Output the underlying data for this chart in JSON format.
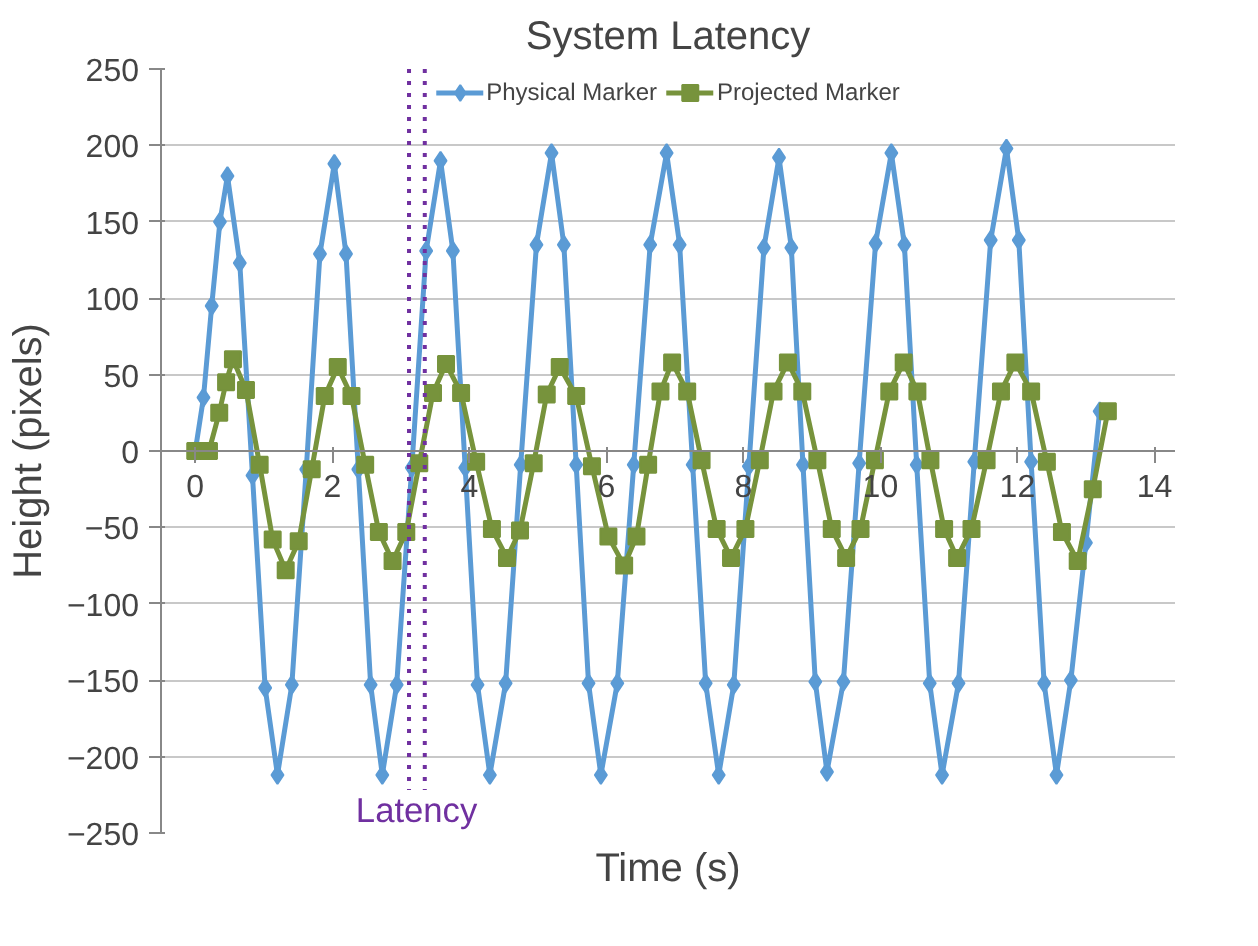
{
  "chart_data": {
    "type": "line",
    "title": "System Latency",
    "xlabel": "Time (s)",
    "ylabel": "Height (pixels)",
    "xlim": [
      -0.5,
      14.3
    ],
    "xticks": [
      0,
      2,
      4,
      6,
      8,
      10,
      12,
      14
    ],
    "ylim": [
      -250,
      250
    ],
    "yticks": [
      -250,
      -200,
      -150,
      -100,
      -50,
      0,
      50,
      100,
      150,
      200,
      250
    ],
    "grid": "y",
    "legend": "top",
    "series": [
      {
        "name": "Physical Marker",
        "color": "#5b9bd5",
        "marker": "diamond",
        "x": [
          0,
          0.12,
          0.24,
          0.36,
          0.47,
          0.65,
          0.835,
          1.02,
          1.2,
          1.41,
          1.62,
          1.82,
          2.03,
          2.2,
          2.38,
          2.56,
          2.73,
          2.94,
          3.16,
          3.37,
          3.58,
          3.76,
          3.94,
          4.12,
          4.3,
          4.53,
          4.75,
          4.98,
          5.2,
          5.38,
          5.56,
          5.74,
          5.92,
          6.16,
          6.4,
          6.64,
          6.88,
          7.07,
          7.26,
          7.45,
          7.64,
          7.86,
          8.08,
          8.3,
          8.52,
          8.7,
          8.87,
          9.05,
          9.22,
          9.46,
          9.69,
          9.93,
          10.16,
          10.35,
          10.53,
          10.72,
          10.9,
          11.14,
          11.37,
          11.61,
          11.84,
          12.02,
          12.2,
          12.39,
          12.57,
          12.78,
          13.0,
          13.2
        ],
        "values": [
          0,
          35,
          95,
          150,
          180,
          123,
          -16,
          -155,
          -212,
          -153,
          -12,
          129,
          188,
          129,
          -12,
          -153,
          -212,
          -153,
          -11,
          131,
          190,
          131,
          -11,
          -153,
          -212,
          -152,
          -9,
          135,
          195,
          135,
          -9,
          -152,
          -212,
          -152,
          -9,
          135,
          195,
          135,
          -9,
          -152,
          -212,
          -153,
          -10,
          133,
          192,
          133,
          -9,
          -151,
          -210,
          -151,
          -8,
          136,
          195,
          135,
          -9,
          -152,
          -212,
          -152,
          -7,
          138,
          198,
          138,
          -7,
          -152,
          -212,
          -150,
          -60,
          26
        ]
      },
      {
        "name": "Projected Marker",
        "color": "#77933c",
        "marker": "square",
        "x": [
          0,
          0.2,
          0.35,
          0.45,
          0.55,
          0.74,
          0.94,
          1.13,
          1.32,
          1.51,
          1.7,
          1.89,
          2.08,
          2.28,
          2.48,
          2.68,
          2.88,
          3.08,
          3.27,
          3.47,
          3.66,
          3.88,
          4.1,
          4.33,
          4.55,
          4.74,
          4.94,
          5.13,
          5.32,
          5.56,
          5.79,
          6.03,
          6.26,
          6.44,
          6.61,
          6.79,
          6.96,
          7.18,
          7.39,
          7.61,
          7.82,
          8.03,
          8.24,
          8.44,
          8.65,
          8.86,
          9.08,
          9.29,
          9.5,
          9.71,
          9.92,
          10.13,
          10.34,
          10.54,
          10.73,
          10.93,
          11.12,
          11.33,
          11.55,
          11.76,
          11.97,
          12.2,
          12.43,
          12.65,
          12.88,
          13.1,
          13.32
        ],
        "values": [
          0,
          0,
          25,
          45,
          60,
          40,
          -9,
          -58,
          -78,
          -59,
          -12,
          36,
          55,
          36,
          -9,
          -53,
          -72,
          -53,
          -8,
          38,
          57,
          38,
          -7,
          -51,
          -70,
          -52,
          -8,
          37,
          55,
          36,
          -10,
          -56,
          -75,
          -56,
          -9,
          39,
          58,
          39,
          -6,
          -51,
          -70,
          -51,
          -6,
          39,
          58,
          39,
          -6,
          -51,
          -70,
          -51,
          -6,
          39,
          58,
          39,
          -6,
          -51,
          -70,
          -51,
          -6,
          39,
          58,
          39,
          -7,
          -53,
          -72,
          -25,
          26
        ]
      }
    ],
    "ref_lines": [
      {
        "axis": "x",
        "value": 3.12,
        "color": "#7030a0",
        "line_style": "dotted"
      },
      {
        "axis": "x",
        "value": 3.35,
        "color": "#7030a0",
        "line_style": "dotted"
      }
    ],
    "annotations": [
      {
        "text": "Latency",
        "x": 3.23,
        "y": -235
      }
    ]
  }
}
